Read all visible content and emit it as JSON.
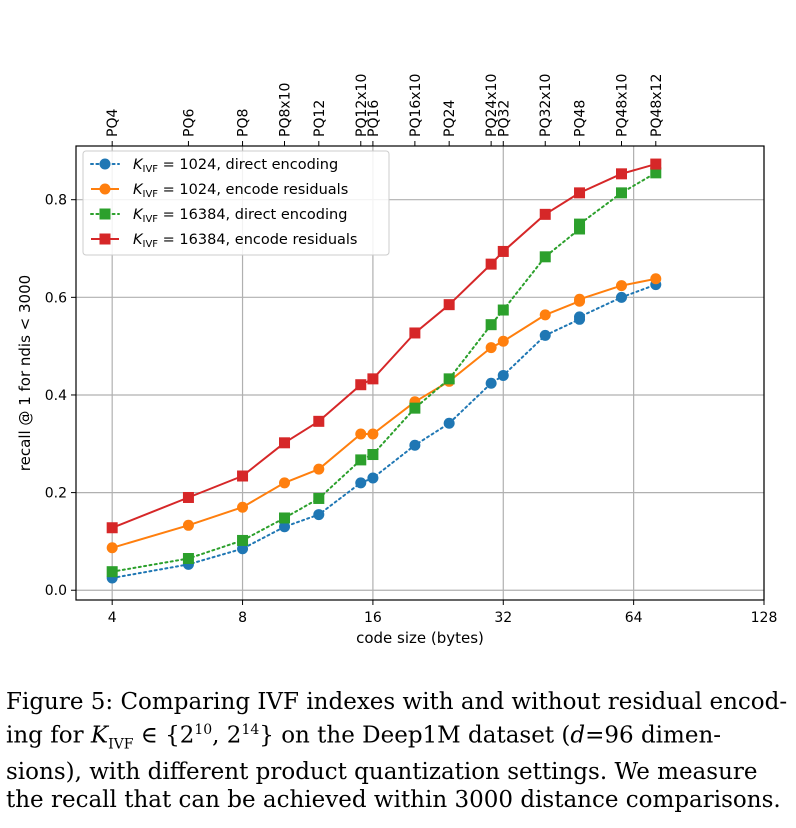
{
  "chart_data": {
    "type": "line",
    "xlabel": "code size (bytes)",
    "ylabel": "recall @ 1 for ndis < 3000",
    "x_scale": "log2",
    "xlim": [
      3.3,
      128
    ],
    "ylim": [
      -0.02,
      0.91
    ],
    "grid": true,
    "legend_position": "top-left",
    "x_ticks": [
      4,
      8,
      16,
      32,
      64,
      128
    ],
    "x_tick_labels": [
      "4",
      "8",
      "16",
      "32",
      "64",
      "128"
    ],
    "y_ticks": [
      0.0,
      0.2,
      0.4,
      0.6,
      0.8
    ],
    "y_tick_labels": [
      "0.0",
      "0.2",
      "0.4",
      "0.6",
      "0.8"
    ],
    "top_axis": {
      "ticks": [
        4,
        6,
        8,
        10,
        12,
        15,
        16,
        20,
        24,
        30,
        32,
        40,
        48,
        60,
        72
      ],
      "labels": [
        "PQ4",
        "PQ6",
        "PQ8",
        "PQ8x10",
        "PQ12",
        "PQ12x10",
        "PQ16",
        "PQ16x10",
        "PQ24",
        "PQ24x10",
        "PQ32",
        "PQ32x10",
        "PQ48",
        "PQ48x10",
        "PQ48x12"
      ]
    },
    "series": [
      {
        "name": "K_IVF = 1024, direct encoding",
        "legend_symbol": "K",
        "legend_sub": "IVF",
        "legend_rest": " = 1024, direct encoding",
        "color": "#1f77b4",
        "linestyle": "dotted",
        "marker": "circle",
        "x": [
          4,
          6,
          8,
          10,
          12,
          15,
          16,
          20,
          24,
          30,
          32,
          40,
          48,
          48,
          60,
          72
        ],
        "y": [
          0.025,
          0.053,
          0.085,
          0.13,
          0.155,
          0.22,
          0.23,
          0.297,
          0.342,
          0.424,
          0.44,
          0.522,
          0.555,
          0.56,
          0.6,
          0.626
        ]
      },
      {
        "name": "K_IVF = 1024, encode residuals",
        "legend_symbol": "K",
        "legend_sub": "IVF",
        "legend_rest": " = 1024, encode residuals",
        "color": "#ff7f0e",
        "linestyle": "solid",
        "marker": "circle",
        "x": [
          4,
          6,
          8,
          10,
          12,
          15,
          16,
          20,
          24,
          30,
          32,
          40,
          48,
          48,
          60,
          72
        ],
        "y": [
          0.087,
          0.133,
          0.17,
          0.22,
          0.248,
          0.32,
          0.32,
          0.386,
          0.428,
          0.497,
          0.51,
          0.564,
          0.592,
          0.596,
          0.624,
          0.638
        ]
      },
      {
        "name": "K_IVF = 16384, direct encoding",
        "legend_symbol": "K",
        "legend_sub": "IVF",
        "legend_rest": " = 16384, direct encoding",
        "color": "#2ca02c",
        "linestyle": "dotted",
        "marker": "square",
        "x": [
          4,
          6,
          8,
          10,
          12,
          15,
          16,
          20,
          24,
          30,
          32,
          40,
          48,
          48,
          60,
          72
        ],
        "y": [
          0.038,
          0.065,
          0.102,
          0.148,
          0.188,
          0.267,
          0.278,
          0.373,
          0.433,
          0.544,
          0.574,
          0.683,
          0.74,
          0.75,
          0.814,
          0.855
        ]
      },
      {
        "name": "K_IVF = 16384, encode residuals",
        "legend_symbol": "K",
        "legend_sub": "IVF",
        "legend_rest": " = 16384, encode residuals",
        "color": "#d62728",
        "linestyle": "solid",
        "marker": "square",
        "x": [
          4,
          6,
          8,
          10,
          12,
          15,
          16,
          20,
          24,
          30,
          32,
          40,
          48,
          60,
          72
        ],
        "y": [
          0.128,
          0.19,
          0.234,
          0.302,
          0.346,
          0.421,
          0.433,
          0.527,
          0.585,
          0.668,
          0.694,
          0.77,
          0.814,
          0.853,
          0.873
        ]
      }
    ]
  },
  "caption": {
    "line1": "Figure 5: Comparing IVF indexes with and without residual encod-",
    "line2_a": "ing for ",
    "line2_k": "K",
    "line2_sub": "IVF",
    "line2_b": " ∈ {2",
    "line2_sup1": "10",
    "line2_c": ", 2",
    "line2_sup2": "14",
    "line2_d": "} on the Deep1M dataset (",
    "line2_d_var": "d",
    "line2_e": "=96 dimen-",
    "line3": "sions), with different product quantization settings.  We measure",
    "line4": "the recall that can be achieved within 3000 distance comparisons."
  }
}
